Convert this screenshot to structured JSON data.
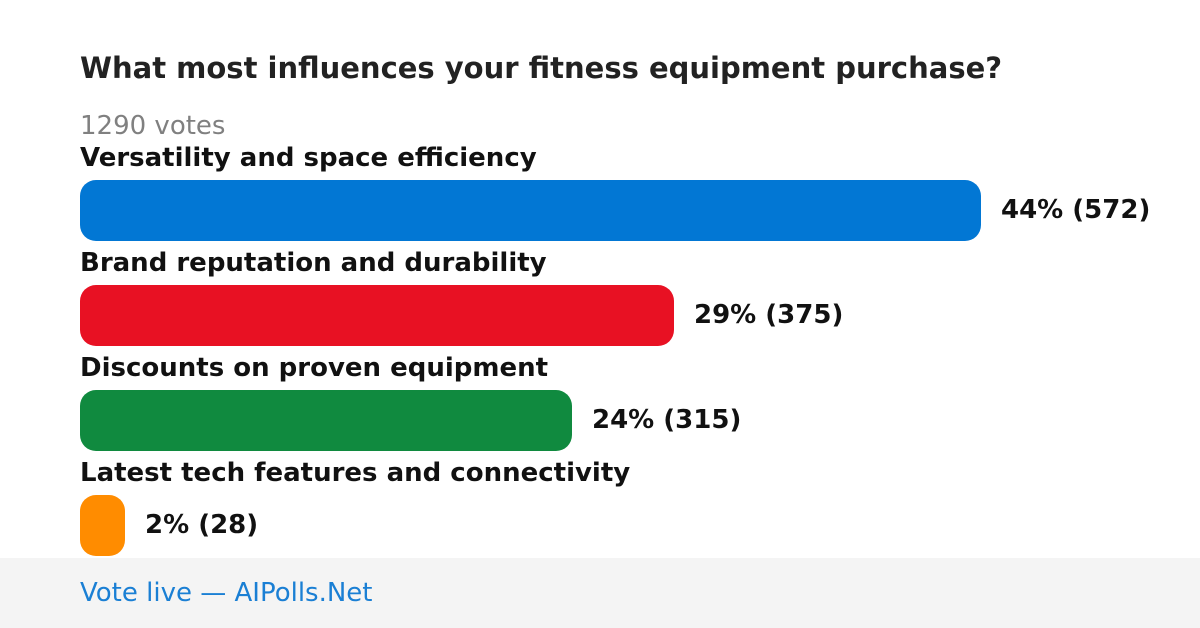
{
  "poll": {
    "question": "What most influences your fitness equipment purchase?",
    "votes_label": "1290 votes"
  },
  "colors": {
    "option_1": "#0277d4",
    "option_2": "#e81123",
    "option_3": "#108a3f",
    "option_4": "#ff8c00",
    "footer_link": "#1a7fd4"
  },
  "chart_data": {
    "type": "bar",
    "orientation": "horizontal",
    "title": "What most influences your fitness equipment purchase?",
    "total_votes": 1290,
    "categories": [
      "Versatility and space efficiency",
      "Brand reputation and durability",
      "Discounts on proven equipment",
      "Latest tech features and connectivity"
    ],
    "percentages": [
      44,
      29,
      24,
      2
    ],
    "votes": [
      572,
      375,
      315,
      28
    ],
    "result_labels": [
      "44% (572)",
      "29% (375)",
      "24% (315)",
      "2% (28)"
    ]
  },
  "footer": {
    "link_text": "Vote live — AIPolls.Net"
  }
}
